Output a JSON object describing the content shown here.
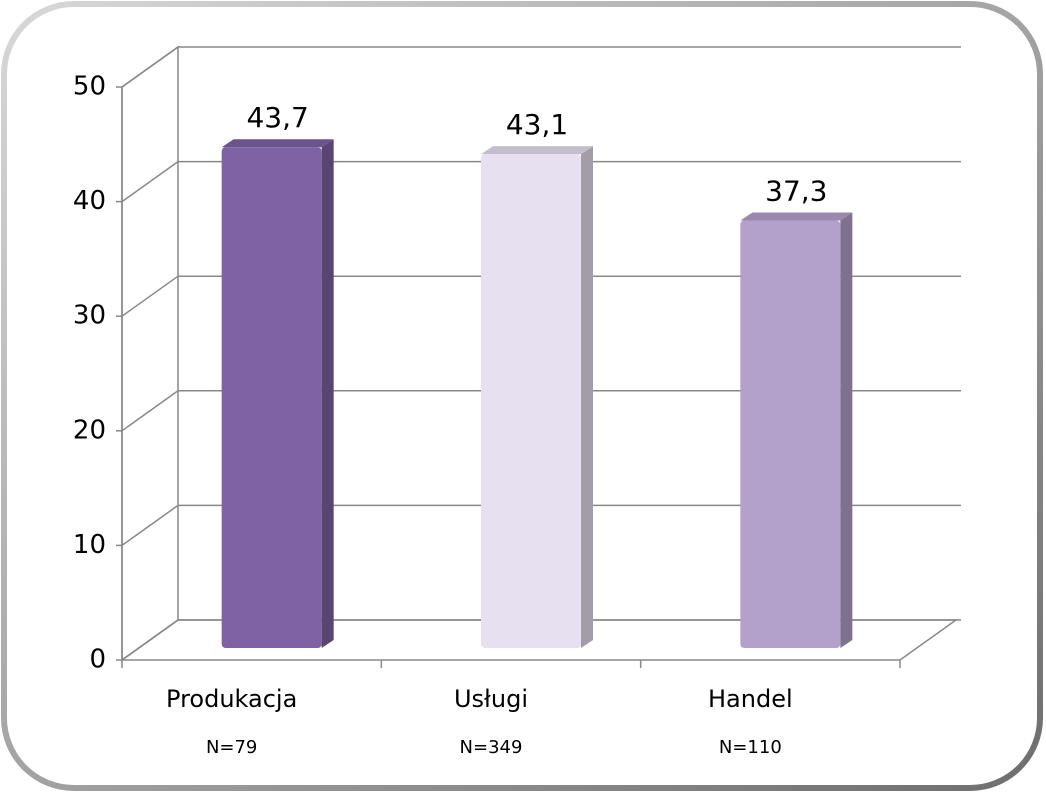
{
  "chart_data": {
    "type": "bar",
    "categories": [
      "Produkacja",
      "Usługi",
      "Handel"
    ],
    "values": [
      43.7,
      43.1,
      37.3
    ],
    "value_labels": [
      "43,7",
      "43,1",
      "37,3"
    ],
    "colors": [
      "#7f62a3",
      "#e7e0f0",
      "#b3a1cc"
    ],
    "annotations": [
      "N=79",
      "N=349",
      "N=110"
    ],
    "ylim": [
      0,
      50
    ],
    "yticks": [
      0,
      10,
      20,
      30,
      40,
      50
    ],
    "grid": true
  }
}
